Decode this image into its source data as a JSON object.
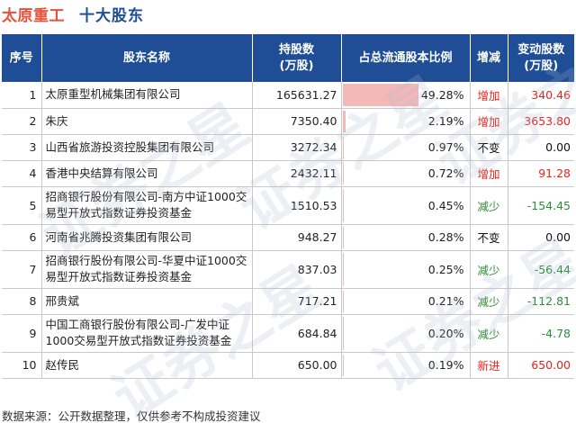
{
  "header": {
    "company": "太原重工",
    "subtitle": "十大股东"
  },
  "columns": {
    "index": "序号",
    "name": "股东名称",
    "shares": "持股数\n(万股)",
    "ratio": "占总流通股本比例",
    "change": "增减",
    "delta": "变动股数\n(万股)"
  },
  "rows": [
    {
      "index": "1",
      "name": "太原重型机械集团有限公司",
      "shares": "165631.27",
      "ratio": "49.28%",
      "ratio_value": 49.28,
      "change": "增加",
      "change_type": "up",
      "delta": "340.46"
    },
    {
      "index": "2",
      "name": "朱庆",
      "shares": "7350.40",
      "ratio": "2.19%",
      "ratio_value": 2.19,
      "change": "增加",
      "change_type": "up",
      "delta": "3653.80"
    },
    {
      "index": "3",
      "name": "山西省旅游投资控股集团有限公司",
      "shares": "3272.34",
      "ratio": "0.97%",
      "ratio_value": 0.97,
      "change": "不变",
      "change_type": "flat",
      "delta": "0.00"
    },
    {
      "index": "4",
      "name": "香港中央结算有限公司",
      "shares": "2432.11",
      "ratio": "0.72%",
      "ratio_value": 0.72,
      "change": "增加",
      "change_type": "up",
      "delta": "91.28"
    },
    {
      "index": "5",
      "name": "招商银行股份有限公司-南方中证1000交易型开放式指数证券投资基金",
      "shares": "1510.53",
      "ratio": "0.45%",
      "ratio_value": 0.45,
      "change": "减少",
      "change_type": "down",
      "delta": "-154.45"
    },
    {
      "index": "6",
      "name": "河南省兆腾投资集团有限公司",
      "shares": "948.27",
      "ratio": "0.28%",
      "ratio_value": 0.28,
      "change": "不变",
      "change_type": "flat",
      "delta": "0.00"
    },
    {
      "index": "7",
      "name": "招商银行股份有限公司-华夏中证1000交易型开放式指数证券投资基金",
      "shares": "837.03",
      "ratio": "0.25%",
      "ratio_value": 0.25,
      "change": "减少",
      "change_type": "down",
      "delta": "-56.44"
    },
    {
      "index": "8",
      "name": "邢贵斌",
      "shares": "717.21",
      "ratio": "0.21%",
      "ratio_value": 0.21,
      "change": "减少",
      "change_type": "down",
      "delta": "-112.81"
    },
    {
      "index": "9",
      "name": "中国工商银行股份有限公司-广发中证1000交易型开放式指数证券投资基金",
      "shares": "684.84",
      "ratio": "0.20%",
      "ratio_value": 0.2,
      "change": "减少",
      "change_type": "down",
      "delta": "-4.78"
    },
    {
      "index": "10",
      "name": "赵传民",
      "shares": "650.00",
      "ratio": "0.19%",
      "ratio_value": 0.19,
      "change": "新进",
      "change_type": "up",
      "delta": "650.00"
    }
  ],
  "footer": "数据来源：公开数据整理，仅供参考不构成投资建议",
  "watermark": "证券之星",
  "colors": {
    "header_bg": "#1f4e96",
    "company": "#e8503a",
    "up": "#e8231a",
    "down": "#2e8b3a",
    "bar": "#f5b8b8"
  }
}
